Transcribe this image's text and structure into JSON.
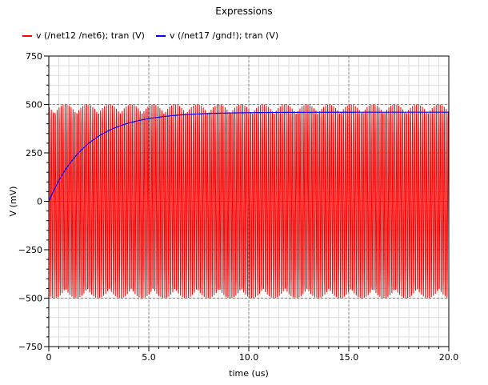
{
  "chart_data": {
    "type": "line",
    "title": "Expressions",
    "xlabel": "time (us)",
    "ylabel": "V (mV)",
    "xlim": [
      0,
      20
    ],
    "ylim": [
      -750,
      750
    ],
    "xticks": [
      0,
      5,
      10,
      15,
      20
    ],
    "xtick_labels": [
      "0",
      "5.0",
      "10.0",
      "15.0",
      "20.0"
    ],
    "yticks": [
      750,
      500,
      250,
      0,
      -250,
      -500,
      -750
    ],
    "ytick_labels": [
      "750",
      "500",
      "250",
      "0",
      "−250",
      "−500",
      "−750"
    ],
    "grid": true,
    "legend_position": "top-left",
    "series": [
      {
        "name": "v (/net12 /net6); tran (V)",
        "color": "#ff0000",
        "kind": "oscillation",
        "amplitude_mV": 500,
        "offset_mV": 0,
        "frequency_MHz": 10
      },
      {
        "name": "v (/net17 /gnd!); tran (V)",
        "color": "#0000ff",
        "kind": "exponential_rise",
        "start_mV": 0,
        "final_mV": 460,
        "tau_us": 1.9
      }
    ]
  }
}
